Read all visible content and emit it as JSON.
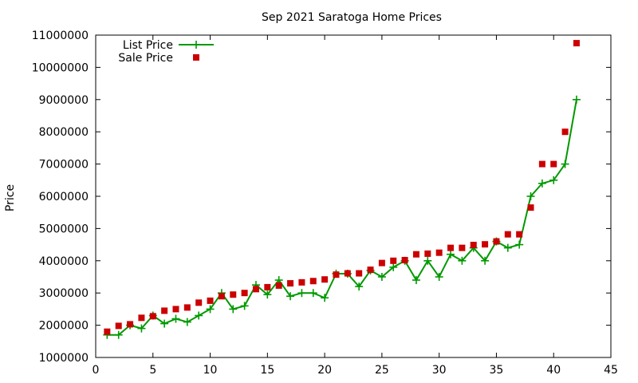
{
  "chart_data": {
    "type": "line",
    "title": "Sep 2021 Saratoga Home Prices",
    "xlabel": "",
    "ylabel": "Price",
    "xlim": [
      0,
      45
    ],
    "ylim": [
      1000000,
      11000000
    ],
    "x_ticks": [
      0,
      5,
      10,
      15,
      20,
      25,
      30,
      35,
      40,
      45
    ],
    "y_ticks": [
      1000000,
      2000000,
      3000000,
      4000000,
      5000000,
      6000000,
      7000000,
      8000000,
      9000000,
      10000000,
      11000000
    ],
    "grid": false,
    "legend_position": "top-left",
    "series": [
      {
        "name": "List Price",
        "style": "line-with-plus-markers",
        "color": "#009900",
        "x": [
          1,
          2,
          3,
          4,
          5,
          6,
          7,
          8,
          9,
          10,
          11,
          12,
          13,
          14,
          15,
          16,
          17,
          18,
          19,
          20,
          21,
          22,
          23,
          24,
          25,
          26,
          27,
          28,
          29,
          30,
          31,
          32,
          33,
          34,
          35,
          36,
          37,
          38,
          39,
          40,
          41,
          42
        ],
        "y": [
          1700000,
          1700000,
          2000000,
          1900000,
          2300000,
          2050000,
          2200000,
          2100000,
          2300000,
          2500000,
          3000000,
          2500000,
          2600000,
          3250000,
          2950000,
          3400000,
          2900000,
          3000000,
          3000000,
          2850000,
          3600000,
          3600000,
          3200000,
          3700000,
          3500000,
          3800000,
          4000000,
          3400000,
          4000000,
          3500000,
          4200000,
          4000000,
          4400000,
          4000000,
          4600000,
          4400000,
          4500000,
          6000000,
          6400000,
          6500000,
          7000000,
          9000000
        ]
      },
      {
        "name": "Sale Price",
        "style": "square-markers",
        "color": "#cc0000",
        "x": [
          1,
          2,
          3,
          4,
          5,
          6,
          7,
          8,
          9,
          10,
          11,
          12,
          13,
          14,
          15,
          16,
          17,
          18,
          19,
          20,
          21,
          22,
          23,
          24,
          25,
          26,
          27,
          28,
          29,
          30,
          31,
          32,
          33,
          34,
          35,
          36,
          37,
          38,
          39,
          40,
          41,
          42
        ],
        "y": [
          1800000,
          1980000,
          2030000,
          2230000,
          2280000,
          2450000,
          2500000,
          2550000,
          2700000,
          2760000,
          2900000,
          2950000,
          3000000,
          3120000,
          3180000,
          3230000,
          3300000,
          3330000,
          3370000,
          3420000,
          3570000,
          3610000,
          3610000,
          3720000,
          3930000,
          4000000,
          4020000,
          4200000,
          4220000,
          4250000,
          4400000,
          4400000,
          4490000,
          4510000,
          4600000,
          4820000,
          4820000,
          5650000,
          7000000,
          7000000,
          8000000,
          10750000
        ]
      }
    ]
  }
}
